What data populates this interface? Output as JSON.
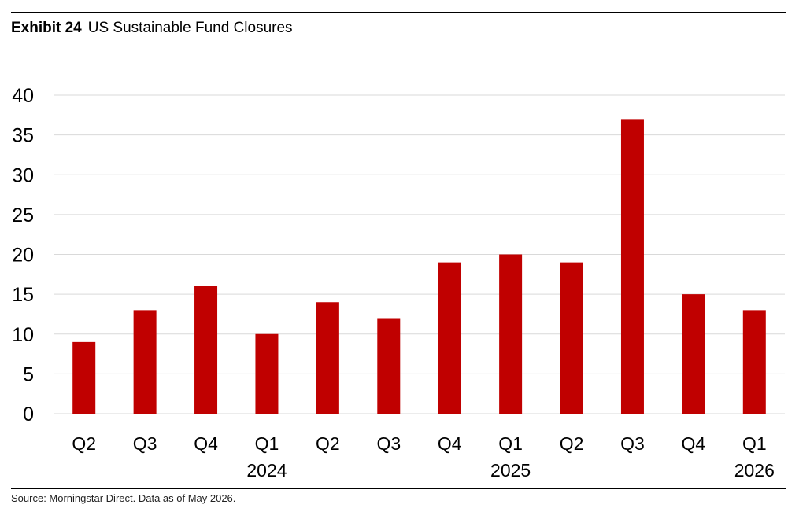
{
  "header": {
    "exhibit_label": "Exhibit 24",
    "title": "US Sustainable Fund Closures"
  },
  "footer": {
    "source": "Source: Morningstar Direct. Data as of May 2026."
  },
  "colors": {
    "bar": "#c00000",
    "grid": "#d9d9d9"
  },
  "chart_data": {
    "type": "bar",
    "title": "US Sustainable Fund Closures",
    "xlabel": "",
    "ylabel": "",
    "categories": [
      "Q2",
      "Q3",
      "Q4",
      "Q1",
      "Q2",
      "Q3",
      "Q4",
      "Q1",
      "Q2",
      "Q3",
      "Q4",
      "Q1"
    ],
    "year_labels": [
      "",
      "",
      "",
      "2024",
      "",
      "",
      "",
      "2025",
      "",
      "",
      "",
      "2026"
    ],
    "values": [
      9,
      13,
      16,
      10,
      14,
      12,
      19,
      20,
      19,
      37,
      15,
      13
    ],
    "ylim": [
      0,
      40
    ],
    "yticks": [
      0,
      5,
      10,
      15,
      20,
      25,
      30,
      35,
      40
    ],
    "grid": true,
    "legend": "none"
  }
}
